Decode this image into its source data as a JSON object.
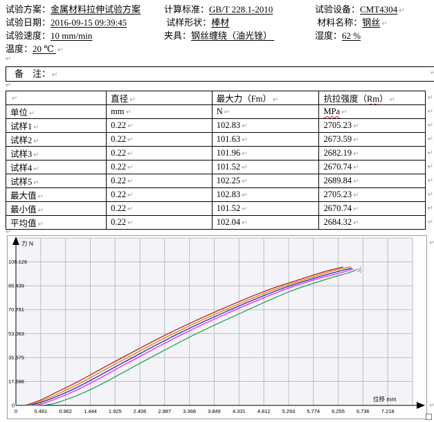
{
  "mark_glyph": "↵",
  "header": {
    "rows": [
      [
        {
          "label": "试验方案：",
          "value": "金属材料拉伸试验方案",
          "mark": false
        },
        {
          "label": "计算标准：",
          "value": "GB/T 228.1-2010",
          "mark": false
        },
        {
          "label": "试验设备：",
          "value": "CMT4304",
          "mark": true
        }
      ],
      [
        {
          "label": "试验日期：",
          "value": "2016-09-15 09:39:45",
          "mark": false
        },
        {
          "label": " 试样形状：",
          "value": "棒材",
          "mark": false
        },
        {
          "label": " 材料名称：",
          "value": "钢丝",
          "mark": true
        }
      ],
      [
        {
          "label": "试验速度：",
          "value": "10 mm/min",
          "mark": false
        },
        {
          "label": "夹具：",
          "value": "钢丝缠绕（油光锉） ",
          "mark": false
        },
        {
          "label": "湿度：",
          "value": "62 %",
          "mark": false
        }
      ],
      [
        {
          "label": "温度：",
          "value": "20 ℃ ",
          "mark": true
        }
      ]
    ]
  },
  "remarks": {
    "label": "备　注："
  },
  "table": {
    "headers": [
      {
        "text": ""
      },
      {
        "text": "直径"
      },
      {
        "text": "最大力（Fm）"
      },
      {
        "text": "抗拉强度（Rm）",
        "squiggle": "Rm"
      }
    ],
    "rows": [
      {
        "cells": [
          {
            "text": "单位"
          },
          {
            "text": "mm"
          },
          {
            "text": "N"
          },
          {
            "text": "MPa",
            "squiggle": "MPa"
          }
        ]
      },
      {
        "cells": [
          {
            "text": "试样1"
          },
          {
            "text": "0.22"
          },
          {
            "text": "102.83"
          },
          {
            "text": "2705.23"
          }
        ]
      },
      {
        "cells": [
          {
            "text": "试样2"
          },
          {
            "text": "0.22"
          },
          {
            "text": "101.63"
          },
          {
            "text": "2673.59"
          }
        ]
      },
      {
        "cells": [
          {
            "text": "试样3"
          },
          {
            "text": "0.22"
          },
          {
            "text": "101.96"
          },
          {
            "text": "2682.19"
          }
        ]
      },
      {
        "cells": [
          {
            "text": "试样4"
          },
          {
            "text": "0.22"
          },
          {
            "text": "101.52"
          },
          {
            "text": "2670.74"
          }
        ]
      },
      {
        "cells": [
          {
            "text": "试样5"
          },
          {
            "text": "0.22"
          },
          {
            "text": "102.25"
          },
          {
            "text": "2689.84"
          }
        ]
      },
      {
        "cells": [
          {
            "text": "最大值"
          },
          {
            "text": "0.22"
          },
          {
            "text": "102.83"
          },
          {
            "text": "2705.23"
          }
        ]
      },
      {
        "cells": [
          {
            "text": "最小值"
          },
          {
            "text": "0.22"
          },
          {
            "text": "101.52"
          },
          {
            "text": "2670.74"
          }
        ]
      },
      {
        "cells": [
          {
            "text": "平均值"
          },
          {
            "text": "0.22"
          },
          {
            "text": "102.04"
          },
          {
            "text": "2684.32"
          }
        ]
      }
    ]
  },
  "chart_data": {
    "type": "line",
    "title": "",
    "xlabel": "位移 mm",
    "ylabel": "力 N",
    "xlim": [
      0,
      7.699
    ],
    "ylim": [
      0,
      123.8
    ],
    "grid": true,
    "legend": "none",
    "plot_bg": "#f4f4f8",
    "grid_color": "#b9bcc9",
    "end_label": "3",
    "end_label_color": "#dd22dd",
    "xticks": [
      "0",
      "0.481",
      "0.962",
      "1.444",
      "1.925",
      "2.406",
      "2.887",
      "3.368",
      "3.849",
      "4.331",
      "4.812",
      "5.293",
      "5.774",
      "6.255",
      "6.736",
      "7.218"
    ],
    "yticks": [
      "0",
      "17.688",
      "35.375",
      "53.063",
      "70.751",
      "88.439",
      "106.126"
    ],
    "series": [
      {
        "name": "试样1",
        "color": "#cc1111",
        "points": [
          [
            0,
            0
          ],
          [
            0.2,
            0.4
          ],
          [
            0.48,
            4
          ],
          [
            0.8,
            10
          ],
          [
            1.2,
            17.5
          ],
          [
            1.9,
            32
          ],
          [
            2.9,
            52
          ],
          [
            3.8,
            68
          ],
          [
            4.8,
            84
          ],
          [
            5.5,
            93
          ],
          [
            6.0,
            99
          ],
          [
            6.35,
            102.3
          ]
        ]
      },
      {
        "name": "试样2",
        "color": "#cc8800",
        "points": [
          [
            0,
            0
          ],
          [
            0.25,
            0.4
          ],
          [
            0.55,
            4
          ],
          [
            0.9,
            10
          ],
          [
            1.3,
            17.5
          ],
          [
            2.0,
            32
          ],
          [
            3.0,
            52
          ],
          [
            3.9,
            68
          ],
          [
            4.9,
            84
          ],
          [
            5.6,
            93
          ],
          [
            6.15,
            99.5
          ],
          [
            6.5,
            102.5
          ]
        ]
      },
      {
        "name": "试样3",
        "color": "#2222cc",
        "points": [
          [
            0,
            0
          ],
          [
            0.3,
            0.4
          ],
          [
            0.62,
            4
          ],
          [
            1.0,
            10
          ],
          [
            1.4,
            17.5
          ],
          [
            2.1,
            32
          ],
          [
            3.1,
            52
          ],
          [
            4.0,
            68
          ],
          [
            5.0,
            84
          ],
          [
            5.7,
            93
          ],
          [
            6.2,
            98.5
          ],
          [
            6.52,
            101.5
          ]
        ]
      },
      {
        "name": "试样4",
        "color": "#ee22ee",
        "points": [
          [
            0,
            0
          ],
          [
            0.4,
            0.4
          ],
          [
            0.72,
            4
          ],
          [
            1.1,
            10
          ],
          [
            1.5,
            17.5
          ],
          [
            2.2,
            32
          ],
          [
            3.2,
            52
          ],
          [
            4.1,
            68
          ],
          [
            5.1,
            84
          ],
          [
            5.8,
            93
          ],
          [
            6.3,
            98
          ],
          [
            6.55,
            101.0
          ]
        ]
      },
      {
        "name": "试样5",
        "color": "#22a050",
        "points": [
          [
            0,
            0
          ],
          [
            0.6,
            0.4
          ],
          [
            0.95,
            4
          ],
          [
            1.35,
            10
          ],
          [
            1.75,
            17.5
          ],
          [
            2.45,
            32
          ],
          [
            3.45,
            52
          ],
          [
            4.35,
            68
          ],
          [
            5.3,
            84
          ],
          [
            6.0,
            93
          ],
          [
            6.45,
            98
          ],
          [
            6.62,
            100.5
          ]
        ]
      }
    ]
  }
}
